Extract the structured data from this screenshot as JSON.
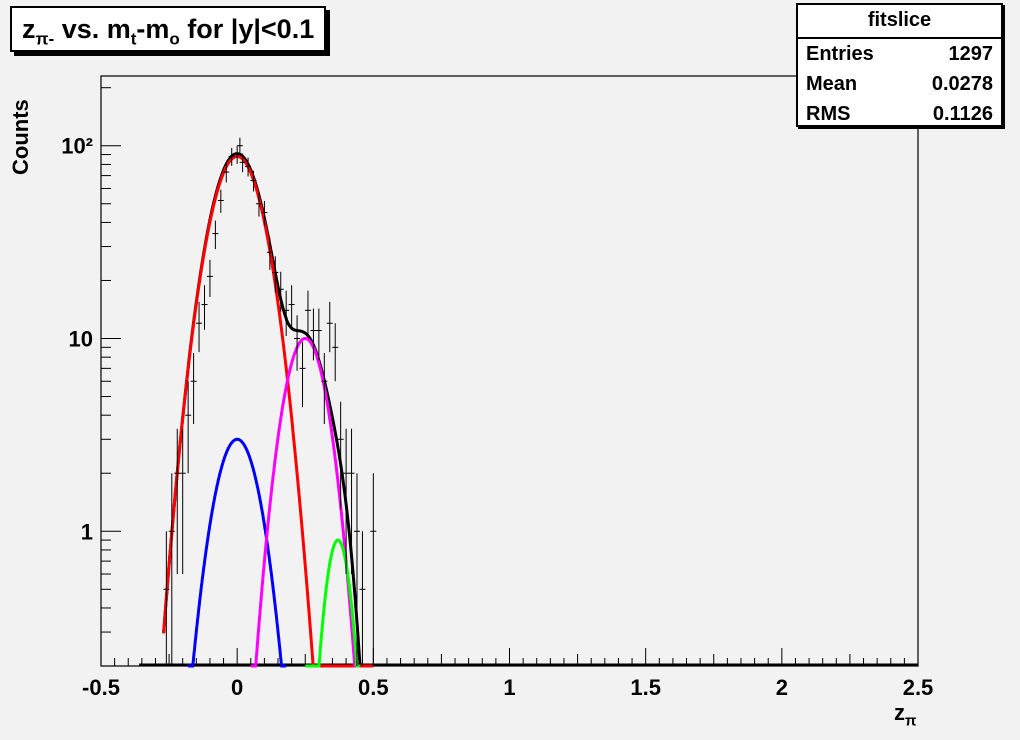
{
  "title": {
    "main": "z",
    "sub1": "π-",
    "mid": " vs. m",
    "sub2": "t",
    "mid2": "-m",
    "sub3": "o",
    "end": " for |y|<0.1"
  },
  "stats": {
    "name": "fitslice",
    "rows": [
      {
        "label": "Entries",
        "value": "1297"
      },
      {
        "label": "Mean",
        "value": "0.0278"
      },
      {
        "label": "RMS",
        "value": "0.1126"
      }
    ]
  },
  "axes": {
    "ylabel": "Counts",
    "xlabel_main": "z",
    "xlabel_sub": "π",
    "xticks": [
      "-0.5",
      "0",
      "0.5",
      "1",
      "1.5",
      "2",
      "2.5"
    ],
    "yticks": [
      "1",
      "10",
      "10²"
    ]
  },
  "colors": {
    "frame_bg": "#f2f2f2",
    "total_fit": "#000000",
    "component_red": "#ff0000",
    "component_blue": "#0000ff",
    "component_magenta": "#ff00ff",
    "component_green": "#00ff00"
  },
  "chart_data": {
    "type": "scatter",
    "xlim": [
      -0.5,
      2.5
    ],
    "ylim": [
      0.2,
      230
    ],
    "yscale": "log",
    "grid": false,
    "points": [
      {
        "x": -0.26,
        "y": 0.5,
        "err": 0.5
      },
      {
        "x": -0.24,
        "y": 1.0,
        "err": 1.0
      },
      {
        "x": -0.22,
        "y": 2.0,
        "err": 1.4
      },
      {
        "x": -0.2,
        "y": 2.0,
        "err": 1.4
      },
      {
        "x": -0.18,
        "y": 4.0,
        "err": 2.0
      },
      {
        "x": -0.16,
        "y": 6.0,
        "err": 2.4
      },
      {
        "x": -0.14,
        "y": 12.0,
        "err": 3.5
      },
      {
        "x": -0.12,
        "y": 15.0,
        "err": 3.9
      },
      {
        "x": -0.1,
        "y": 21.0,
        "err": 4.6
      },
      {
        "x": -0.08,
        "y": 35.0,
        "err": 5.9
      },
      {
        "x": -0.06,
        "y": 52.0,
        "err": 7.2
      },
      {
        "x": -0.04,
        "y": 73.0,
        "err": 8.5
      },
      {
        "x": -0.02,
        "y": 88.0,
        "err": 9.4
      },
      {
        "x": 0.0,
        "y": 90.0,
        "err": 9.5
      },
      {
        "x": 0.01,
        "y": 100.0,
        "err": 10.0
      },
      {
        "x": 0.02,
        "y": 82.0,
        "err": 9.1
      },
      {
        "x": 0.04,
        "y": 78.0,
        "err": 8.8
      },
      {
        "x": 0.06,
        "y": 66.0,
        "err": 8.1
      },
      {
        "x": 0.08,
        "y": 50.0,
        "err": 7.1
      },
      {
        "x": 0.1,
        "y": 45.0,
        "err": 6.7
      },
      {
        "x": 0.12,
        "y": 28.0,
        "err": 5.3
      },
      {
        "x": 0.14,
        "y": 22.0,
        "err": 4.7
      },
      {
        "x": 0.16,
        "y": 18.0,
        "err": 4.2
      },
      {
        "x": 0.18,
        "y": 14.0,
        "err": 3.7
      },
      {
        "x": 0.2,
        "y": 15.0,
        "err": 3.9
      },
      {
        "x": 0.22,
        "y": 10.0,
        "err": 3.2
      },
      {
        "x": 0.24,
        "y": 7.0,
        "err": 2.6
      },
      {
        "x": 0.26,
        "y": 14.0,
        "err": 3.7
      },
      {
        "x": 0.28,
        "y": 11.0,
        "err": 3.3
      },
      {
        "x": 0.3,
        "y": 11.0,
        "err": 3.3
      },
      {
        "x": 0.32,
        "y": 6.0,
        "err": 2.4
      },
      {
        "x": 0.34,
        "y": 12.0,
        "err": 3.5
      },
      {
        "x": 0.36,
        "y": 9.0,
        "err": 3.0
      },
      {
        "x": 0.38,
        "y": 3.0,
        "err": 1.7
      },
      {
        "x": 0.4,
        "y": 2.0,
        "err": 1.4
      },
      {
        "x": 0.42,
        "y": 2.0,
        "err": 1.4
      },
      {
        "x": 0.44,
        "y": 1.0,
        "err": 1.0
      },
      {
        "x": 0.46,
        "y": 0.5,
        "err": 0.5
      },
      {
        "x": 0.5,
        "y": 1.0,
        "err": 1.0
      }
    ],
    "curves": [
      {
        "color": "red",
        "x_range": [
          -0.27,
          0.5
        ],
        "amplitude": 88,
        "mean": 0.0,
        "sigma": 0.08
      },
      {
        "color": "blue",
        "x_range": [
          -0.18,
          0.18
        ],
        "amplitude": 3,
        "mean": 0.0,
        "sigma": 0.07
      },
      {
        "color": "magenta",
        "x_range": [
          0.05,
          0.45
        ],
        "amplitude": 10,
        "mean": 0.25,
        "sigma": 0.065
      },
      {
        "color": "green",
        "x_range": [
          0.25,
          0.45
        ],
        "amplitude": 0.9,
        "mean": 0.37,
        "sigma": 0.04
      },
      {
        "color": "black",
        "x_range": [
          -0.27,
          0.5
        ],
        "type": "sum"
      }
    ]
  }
}
